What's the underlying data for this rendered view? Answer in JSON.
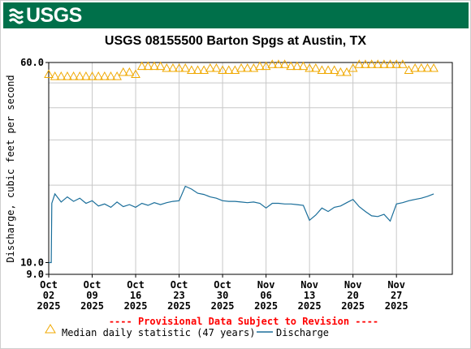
{
  "header": {
    "logo_text": "USGS",
    "banner_color": "#00704a"
  },
  "chart_data": {
    "type": "line",
    "title": "USGS 08155500 Barton Spgs at Austin, TX",
    "ylabel": "Discharge, cubic feet per second",
    "xlabel": "",
    "yscale": "log",
    "ylim": [
      9.0,
      60.0
    ],
    "y_ticks": [
      {
        "value": 60.0,
        "label": "60.0"
      },
      {
        "value": 10.0,
        "label": "10.0"
      },
      {
        "value": 9.0,
        "label": "9.0"
      }
    ],
    "y_grid": [
      50,
      40,
      30,
      20
    ],
    "xlim": [
      "2025-10-02",
      "2025-12-06"
    ],
    "x_ticks": [
      {
        "date": "2025-10-02",
        "label": [
          "Oct",
          "02",
          "2025"
        ]
      },
      {
        "date": "2025-10-09",
        "label": [
          "Oct",
          "09",
          "2025"
        ]
      },
      {
        "date": "2025-10-16",
        "label": [
          "Oct",
          "16",
          "2025"
        ]
      },
      {
        "date": "2025-10-23",
        "label": [
          "Oct",
          "23",
          "2025"
        ]
      },
      {
        "date": "2025-10-30",
        "label": [
          "Oct",
          "30",
          "2025"
        ]
      },
      {
        "date": "2025-11-06",
        "label": [
          "Nov",
          "06",
          "2025"
        ]
      },
      {
        "date": "2025-11-13",
        "label": [
          "Nov",
          "13",
          "2025"
        ]
      },
      {
        "date": "2025-11-20",
        "label": [
          "Nov",
          "20",
          "2025"
        ]
      },
      {
        "date": "2025-11-27",
        "label": [
          "Nov",
          "27",
          "2025"
        ]
      }
    ],
    "grid": true,
    "provisional_note": "---- Provisional Data Subject to Revision ----",
    "series": [
      {
        "name": "Median daily statistic (47 years)",
        "marker": "triangle",
        "color": "#f0a800",
        "points": [
          [
            "2025-10-02",
            54
          ],
          [
            "2025-10-03",
            53
          ],
          [
            "2025-10-04",
            53
          ],
          [
            "2025-10-05",
            53
          ],
          [
            "2025-10-06",
            53
          ],
          [
            "2025-10-07",
            53
          ],
          [
            "2025-10-08",
            53
          ],
          [
            "2025-10-09",
            53
          ],
          [
            "2025-10-10",
            53
          ],
          [
            "2025-10-11",
            53
          ],
          [
            "2025-10-12",
            53
          ],
          [
            "2025-10-13",
            53
          ],
          [
            "2025-10-14",
            55
          ],
          [
            "2025-10-15",
            55
          ],
          [
            "2025-10-16",
            54
          ],
          [
            "2025-10-17",
            58
          ],
          [
            "2025-10-18",
            58
          ],
          [
            "2025-10-19",
            58
          ],
          [
            "2025-10-20",
            58
          ],
          [
            "2025-10-21",
            57
          ],
          [
            "2025-10-22",
            57
          ],
          [
            "2025-10-23",
            57
          ],
          [
            "2025-10-24",
            57
          ],
          [
            "2025-10-25",
            56
          ],
          [
            "2025-10-26",
            56
          ],
          [
            "2025-10-27",
            56
          ],
          [
            "2025-10-28",
            57
          ],
          [
            "2025-10-29",
            57
          ],
          [
            "2025-10-30",
            56
          ],
          [
            "2025-10-31",
            56
          ],
          [
            "2025-11-01",
            56
          ],
          [
            "2025-11-02",
            57
          ],
          [
            "2025-11-03",
            57
          ],
          [
            "2025-11-04",
            57
          ],
          [
            "2025-11-05",
            58
          ],
          [
            "2025-11-06",
            58
          ],
          [
            "2025-11-07",
            59
          ],
          [
            "2025-11-08",
            59
          ],
          [
            "2025-11-09",
            59
          ],
          [
            "2025-11-10",
            58
          ],
          [
            "2025-11-11",
            58
          ],
          [
            "2025-11-12",
            58
          ],
          [
            "2025-11-13",
            57
          ],
          [
            "2025-11-14",
            57
          ],
          [
            "2025-11-15",
            56
          ],
          [
            "2025-11-16",
            56
          ],
          [
            "2025-11-17",
            56
          ],
          [
            "2025-11-18",
            55
          ],
          [
            "2025-11-19",
            55
          ],
          [
            "2025-11-20",
            57
          ],
          [
            "2025-11-21",
            59
          ],
          [
            "2025-11-22",
            59
          ],
          [
            "2025-11-23",
            59
          ],
          [
            "2025-11-24",
            59
          ],
          [
            "2025-11-25",
            59
          ],
          [
            "2025-11-26",
            59
          ],
          [
            "2025-11-27",
            59
          ],
          [
            "2025-11-28",
            59
          ],
          [
            "2025-11-29",
            56
          ],
          [
            "2025-11-30",
            57
          ],
          [
            "2025-12-01",
            57
          ],
          [
            "2025-12-02",
            57
          ],
          [
            "2025-12-03",
            57
          ]
        ]
      },
      {
        "name": "Discharge",
        "marker": "none",
        "color": "#1a6e9a",
        "points": [
          [
            "2025-10-02",
            10.0
          ],
          [
            "2025-10-02.4",
            10.0
          ],
          [
            "2025-10-02.5",
            17.0
          ],
          [
            "2025-10-03",
            18.5
          ],
          [
            "2025-10-04",
            17.2
          ],
          [
            "2025-10-05",
            18.0
          ],
          [
            "2025-10-06",
            17.3
          ],
          [
            "2025-10-07",
            17.8
          ],
          [
            "2025-10-08",
            17.0
          ],
          [
            "2025-10-09",
            17.4
          ],
          [
            "2025-10-10",
            16.6
          ],
          [
            "2025-10-11",
            16.9
          ],
          [
            "2025-10-12",
            16.4
          ],
          [
            "2025-10-13",
            17.2
          ],
          [
            "2025-10-14",
            16.5
          ],
          [
            "2025-10-15",
            16.8
          ],
          [
            "2025-10-16",
            16.4
          ],
          [
            "2025-10-17",
            17.0
          ],
          [
            "2025-10-18",
            16.7
          ],
          [
            "2025-10-19",
            17.1
          ],
          [
            "2025-10-20",
            16.8
          ],
          [
            "2025-10-21",
            17.1
          ],
          [
            "2025-10-22",
            17.3
          ],
          [
            "2025-10-23",
            17.4
          ],
          [
            "2025-10-24",
            19.8
          ],
          [
            "2025-10-25",
            19.3
          ],
          [
            "2025-10-26",
            18.6
          ],
          [
            "2025-10-27",
            18.4
          ],
          [
            "2025-10-28",
            18.0
          ],
          [
            "2025-10-29",
            17.8
          ],
          [
            "2025-10-30",
            17.4
          ],
          [
            "2025-10-31",
            17.3
          ],
          [
            "2025-11-01",
            17.3
          ],
          [
            "2025-11-02",
            17.2
          ],
          [
            "2025-11-03",
            17.1
          ],
          [
            "2025-11-04",
            17.2
          ],
          [
            "2025-11-05",
            17.0
          ],
          [
            "2025-11-06",
            16.3
          ],
          [
            "2025-11-07",
            17.0
          ],
          [
            "2025-11-08",
            17.0
          ],
          [
            "2025-11-09",
            16.9
          ],
          [
            "2025-11-10",
            16.9
          ],
          [
            "2025-11-11",
            16.8
          ],
          [
            "2025-11-12",
            16.7
          ],
          [
            "2025-11-13",
            14.6
          ],
          [
            "2025-11-14",
            15.3
          ],
          [
            "2025-11-15",
            16.3
          ],
          [
            "2025-11-16",
            15.8
          ],
          [
            "2025-11-17",
            16.4
          ],
          [
            "2025-11-18",
            16.6
          ],
          [
            "2025-11-19",
            17.1
          ],
          [
            "2025-11-20",
            17.6
          ],
          [
            "2025-11-21",
            16.5
          ],
          [
            "2025-11-22",
            15.8
          ],
          [
            "2025-11-23",
            15.2
          ],
          [
            "2025-11-24",
            15.1
          ],
          [
            "2025-11-25",
            15.4
          ],
          [
            "2025-11-26",
            14.5
          ],
          [
            "2025-11-27",
            16.9
          ],
          [
            "2025-11-28",
            17.1
          ],
          [
            "2025-11-29",
            17.4
          ],
          [
            "2025-11-30",
            17.6
          ],
          [
            "2025-12-01",
            17.8
          ],
          [
            "2025-12-02",
            18.1
          ],
          [
            "2025-12-03",
            18.5
          ]
        ]
      }
    ],
    "legend": {
      "placement": "bottom",
      "entries": [
        "Median daily statistic (47 years)",
        "Discharge"
      ]
    }
  }
}
